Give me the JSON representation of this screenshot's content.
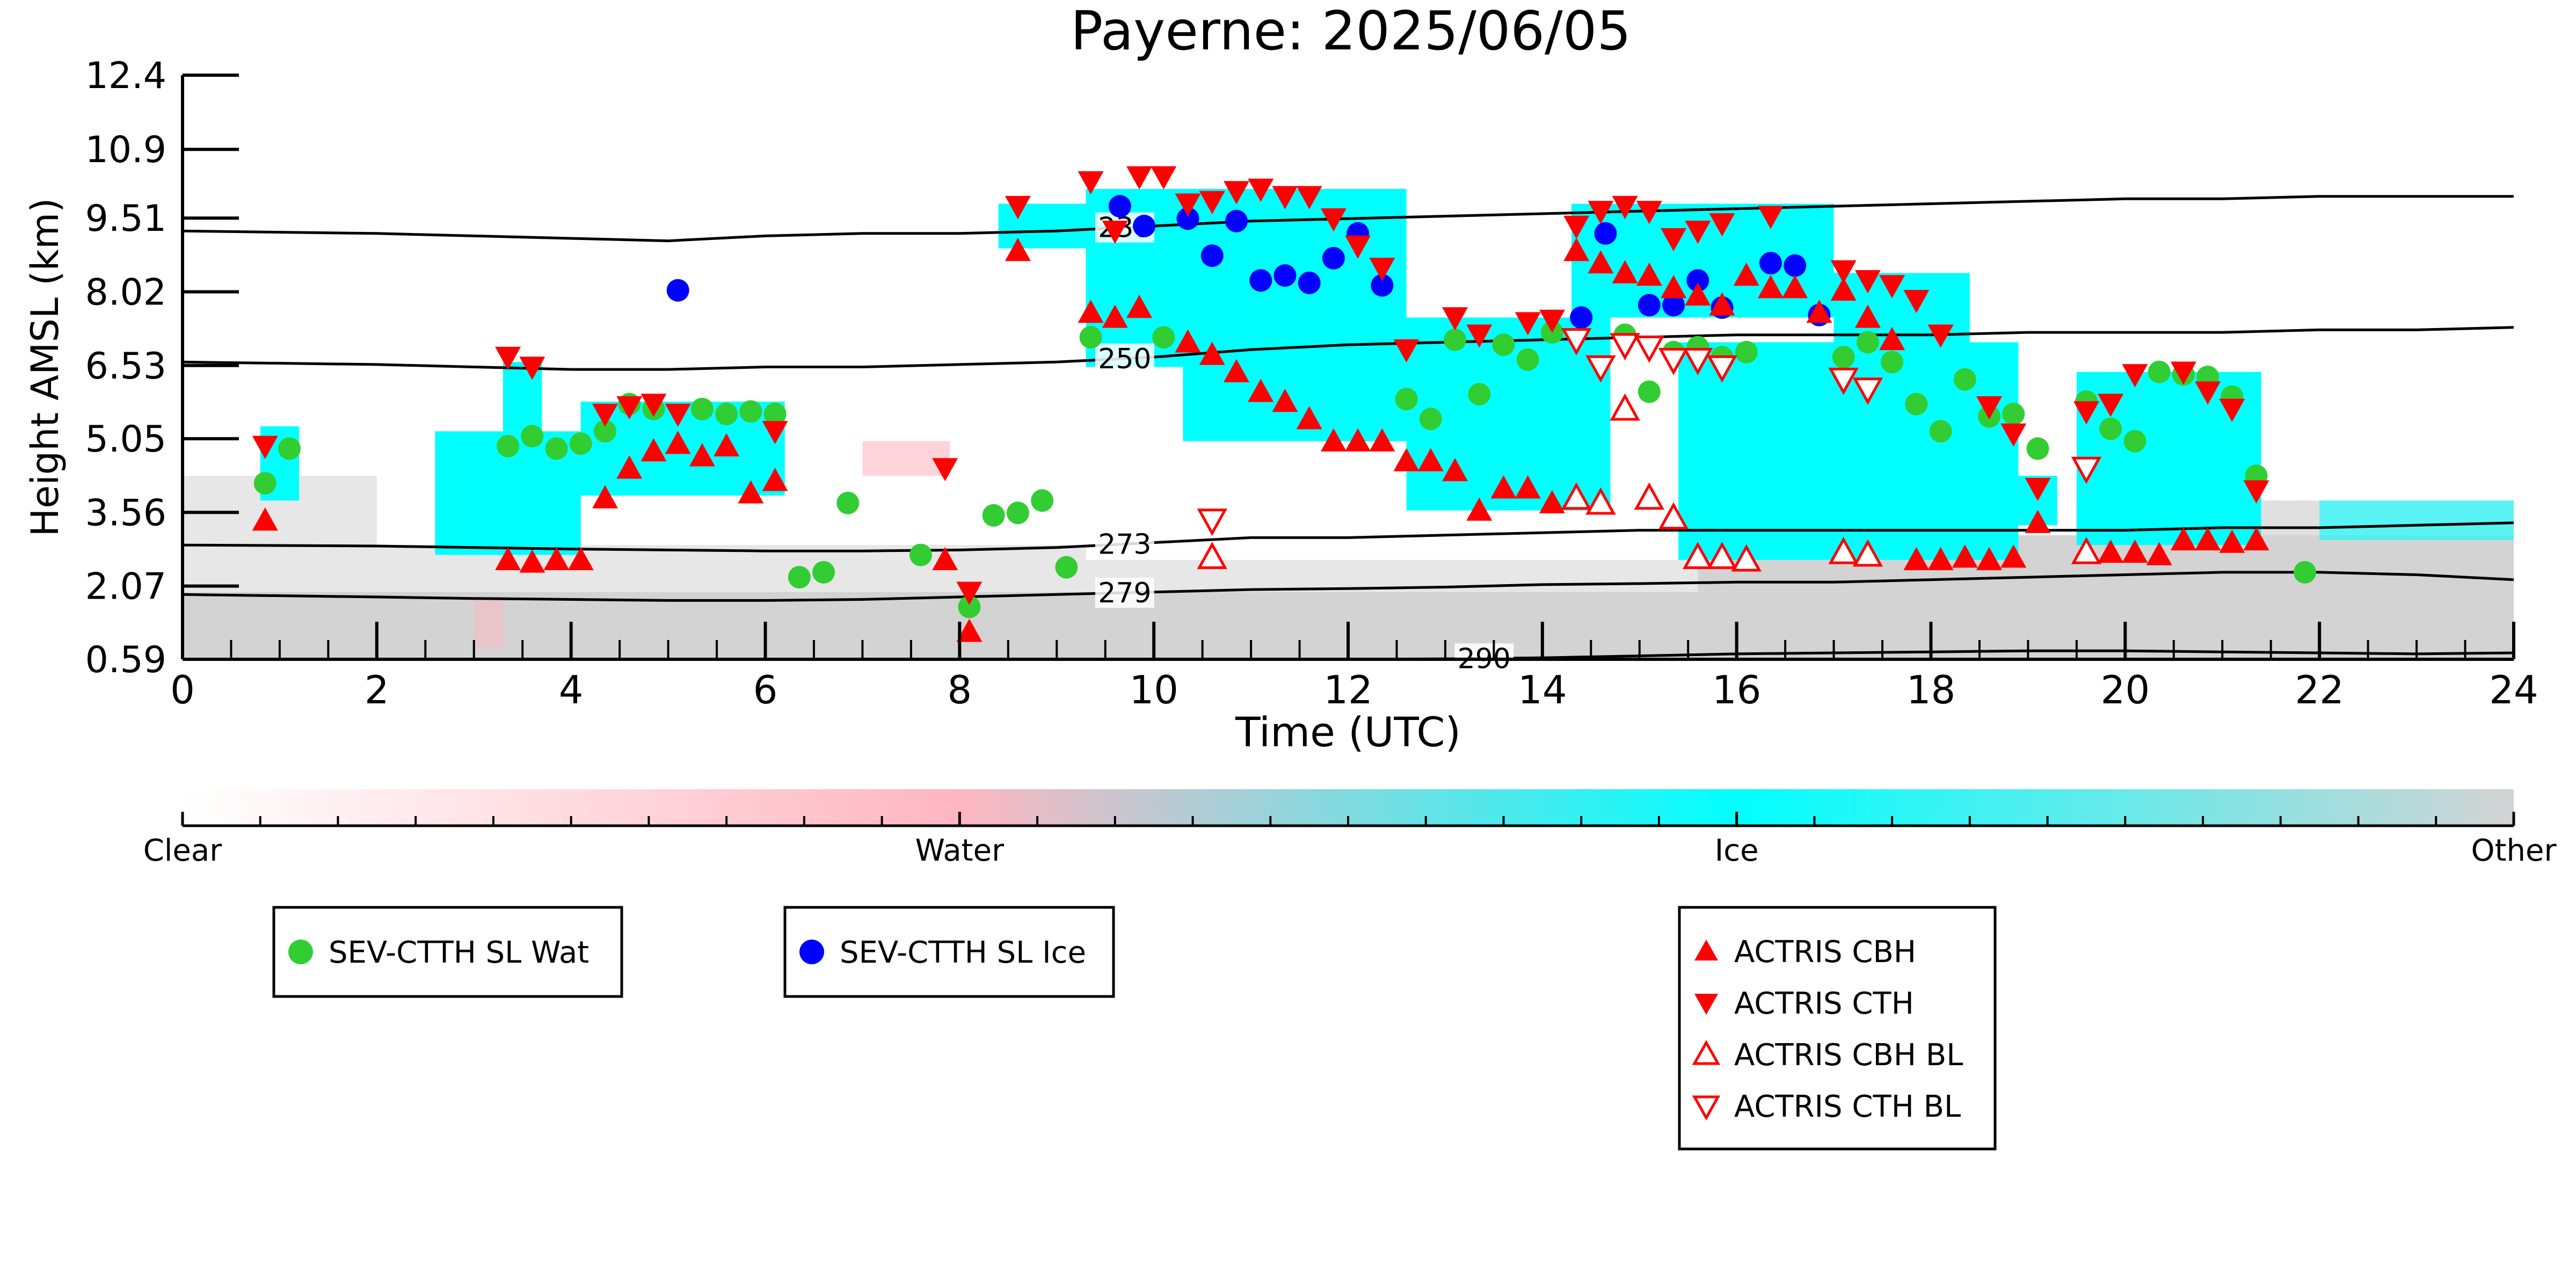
{
  "chart_data": {
    "type": "scatter",
    "title": "Payerne: 2025/06/05",
    "xlabel": "Time (UTC)",
    "ylabel": "Height AMSL (km)",
    "xlim": [
      0,
      24
    ],
    "ylim": [
      0.59,
      12.4
    ],
    "x_ticks": [
      "0",
      "2",
      "4",
      "6",
      "8",
      "10",
      "12",
      "14",
      "16",
      "18",
      "20",
      "22",
      "24"
    ],
    "y_ticks": [
      "0.59",
      "2.07",
      "3.56",
      "5.05",
      "6.53",
      "8.02",
      "9.51",
      "10.9",
      "12.4"
    ],
    "grid": false,
    "colorbar": {
      "labels": [
        "Clear",
        "Water",
        "Ice",
        "Other"
      ],
      "colors": [
        "#ffffff",
        "#ffb6c1",
        "#00ffff",
        "#d3d3d3"
      ]
    },
    "isotherms": [
      {
        "label": "230",
        "x": [
          0,
          2,
          3,
          4,
          5,
          6,
          7,
          8,
          9,
          10,
          11,
          12,
          13,
          14,
          15,
          16,
          17,
          18,
          19,
          20,
          21,
          22,
          23,
          24
        ],
        "y": [
          9.25,
          9.2,
          9.15,
          9.1,
          9.05,
          9.15,
          9.2,
          9.2,
          9.25,
          9.35,
          9.45,
          9.5,
          9.55,
          9.6,
          9.65,
          9.7,
          9.75,
          9.8,
          9.85,
          9.9,
          9.9,
          9.95,
          9.95,
          9.95
        ]
      },
      {
        "label": "250",
        "x": [
          0,
          2,
          3,
          4,
          5,
          6,
          7,
          8,
          9,
          10,
          11,
          12,
          13,
          14,
          15,
          16,
          17,
          18,
          19,
          20,
          21,
          22,
          23,
          24
        ],
        "y": [
          6.6,
          6.55,
          6.5,
          6.45,
          6.45,
          6.5,
          6.5,
          6.55,
          6.6,
          6.7,
          6.85,
          6.95,
          7.0,
          7.05,
          7.1,
          7.15,
          7.15,
          7.15,
          7.2,
          7.2,
          7.2,
          7.25,
          7.25,
          7.3
        ]
      },
      {
        "label": "273",
        "x": [
          0,
          2,
          3,
          4,
          5,
          6,
          7,
          8,
          9,
          10,
          11,
          12,
          13,
          14,
          15,
          16,
          17,
          18,
          19,
          20,
          21,
          22,
          23,
          24
        ],
        "y": [
          2.9,
          2.88,
          2.85,
          2.82,
          2.8,
          2.78,
          2.78,
          2.8,
          2.85,
          2.95,
          3.05,
          3.05,
          3.1,
          3.15,
          3.2,
          3.2,
          3.2,
          3.2,
          3.2,
          3.2,
          3.25,
          3.25,
          3.3,
          3.35
        ]
      },
      {
        "label": "279",
        "x": [
          0,
          2,
          3,
          4,
          5,
          6,
          7,
          8,
          9,
          10,
          11,
          12,
          13,
          14,
          15,
          16,
          17,
          18,
          19,
          20,
          21,
          22,
          23,
          24
        ],
        "y": [
          1.9,
          1.85,
          1.82,
          1.8,
          1.78,
          1.78,
          1.8,
          1.85,
          1.9,
          1.95,
          2.0,
          2.02,
          2.05,
          2.1,
          2.12,
          2.15,
          2.15,
          2.2,
          2.25,
          2.3,
          2.35,
          2.35,
          2.3,
          2.2
        ]
      },
      {
        "label": "290",
        "x": [
          12,
          13,
          14,
          15,
          16,
          17,
          18,
          19,
          20,
          21,
          22,
          23,
          24
        ],
        "y": [
          0.59,
          0.6,
          0.62,
          0.66,
          0.7,
          0.72,
          0.74,
          0.76,
          0.76,
          0.74,
          0.72,
          0.7,
          0.72
        ]
      }
    ],
    "series": [
      {
        "name": "SEV-CTTH SL Wat",
        "marker": "circle",
        "color": "#32cd32",
        "x": [
          0.85,
          1.1,
          3.35,
          3.6,
          3.85,
          4.1,
          4.35,
          4.6,
          4.85,
          5.35,
          5.6,
          5.85,
          6.1,
          6.35,
          6.6,
          6.85,
          7.6,
          8.1,
          8.35,
          8.6,
          8.85,
          9.1,
          9.35,
          10.1,
          12.6,
          12.85,
          13.1,
          13.35,
          13.6,
          13.85,
          14.1,
          14.85,
          15.1,
          15.35,
          15.6,
          15.85,
          16.1,
          17.1,
          17.35,
          17.6,
          17.85,
          18.1,
          18.35,
          18.6,
          18.85,
          19.1,
          19.6,
          19.85,
          20.1,
          20.35,
          20.6,
          20.85,
          21.1,
          21.35,
          21.85
        ],
        "y": [
          4.15,
          4.85,
          4.9,
          5.1,
          4.85,
          4.95,
          5.2,
          5.75,
          5.65,
          5.65,
          5.55,
          5.6,
          5.55,
          2.25,
          2.35,
          3.75,
          2.7,
          1.65,
          3.5,
          3.55,
          3.8,
          2.45,
          7.1,
          7.1,
          5.85,
          5.45,
          7.05,
          5.95,
          6.95,
          6.65,
          7.2,
          7.15,
          6.0,
          6.8,
          6.9,
          6.7,
          6.8,
          6.7,
          7.0,
          6.6,
          5.75,
          5.2,
          6.25,
          5.5,
          5.55,
          4.85,
          5.8,
          5.25,
          5.0,
          6.4,
          6.35,
          6.3,
          5.9,
          4.3,
          2.35
        ]
      },
      {
        "name": "SEV-CTTH SL Ice",
        "marker": "circle",
        "color": "#0000ff",
        "x": [
          5.1,
          9.65,
          9.9,
          10.35,
          10.6,
          10.85,
          11.1,
          11.35,
          11.6,
          11.85,
          12.1,
          12.35,
          14.4,
          14.65,
          15.1,
          15.35,
          15.6,
          15.85,
          16.35,
          16.6,
          16.85
        ],
        "y": [
          8.05,
          9.75,
          9.35,
          9.5,
          8.75,
          9.45,
          8.25,
          8.35,
          8.2,
          8.7,
          9.2,
          8.15,
          7.5,
          9.2,
          7.75,
          7.75,
          8.25,
          7.7,
          8.6,
          8.55,
          7.55
        ]
      }
    ],
    "triangle_series": [
      {
        "name": "ACTRIS CBH",
        "marker": "triangle-up",
        "filled": true,
        "color": "#ff0000",
        "x": [
          0.85,
          3.35,
          3.6,
          3.85,
          4.1,
          4.35,
          4.6,
          4.85,
          5.1,
          5.35,
          5.6,
          5.85,
          6.1,
          7.85,
          8.1,
          8.6,
          9.35,
          9.6,
          9.85,
          10.35,
          10.6,
          10.85,
          11.1,
          11.35,
          11.6,
          11.85,
          12.1,
          12.35,
          12.6,
          12.85,
          13.1,
          13.35,
          13.6,
          13.85,
          14.1,
          14.35,
          14.6,
          14.85,
          15.1,
          15.35,
          15.6,
          15.85,
          16.1,
          16.35,
          16.6,
          16.85,
          17.1,
          17.35,
          17.6,
          17.85,
          18.1,
          18.35,
          18.6,
          18.85,
          19.1,
          19.85,
          20.1,
          20.35,
          20.6,
          20.85,
          21.1,
          21.35
        ],
        "y": [
          3.4,
          2.6,
          2.55,
          2.6,
          2.6,
          3.85,
          4.45,
          4.8,
          4.95,
          4.7,
          4.9,
          3.95,
          4.2,
          2.6,
          1.15,
          8.85,
          7.6,
          7.5,
          7.7,
          7.0,
          6.75,
          6.4,
          6.0,
          5.8,
          5.45,
          5.0,
          5.0,
          5.0,
          4.6,
          4.6,
          4.4,
          3.6,
          4.05,
          4.05,
          3.75,
          8.85,
          8.6,
          8.4,
          8.35,
          8.1,
          7.95,
          7.75,
          8.35,
          8.1,
          8.1,
          7.6,
          8.05,
          7.5,
          7.05,
          2.6,
          2.6,
          2.65,
          2.6,
          2.65,
          3.35,
          2.75,
          2.75,
          2.7,
          3.0,
          3.0,
          2.95,
          3.0
        ]
      },
      {
        "name": "ACTRIS CTH",
        "marker": "triangle-down",
        "filled": true,
        "color": "#ff0000",
        "x": [
          0.85,
          3.35,
          3.6,
          4.35,
          4.6,
          4.85,
          5.1,
          6.1,
          7.85,
          8.1,
          8.6,
          9.35,
          9.6,
          9.85,
          10.1,
          10.35,
          10.6,
          10.85,
          11.1,
          11.35,
          11.6,
          11.85,
          12.1,
          12.35,
          12.6,
          13.1,
          13.35,
          13.85,
          14.1,
          14.35,
          14.6,
          14.85,
          15.1,
          15.35,
          15.6,
          15.85,
          16.35,
          17.1,
          17.35,
          17.6,
          17.85,
          18.1,
          18.6,
          18.85,
          19.1,
          19.6,
          19.85,
          20.1,
          20.6,
          20.85,
          21.1,
          21.35
        ],
        "y": [
          4.9,
          6.7,
          6.5,
          5.55,
          5.7,
          5.75,
          5.55,
          5.2,
          4.45,
          1.95,
          9.75,
          10.25,
          9.25,
          10.35,
          10.35,
          9.8,
          9.85,
          10.05,
          10.1,
          9.95,
          9.95,
          9.5,
          8.95,
          8.5,
          6.85,
          7.5,
          7.15,
          7.4,
          7.45,
          9.35,
          9.65,
          9.75,
          9.65,
          9.1,
          9.25,
          9.4,
          9.55,
          8.45,
          8.25,
          8.15,
          7.85,
          7.15,
          5.7,
          5.15,
          4.05,
          5.6,
          5.75,
          6.35,
          6.4,
          6.0,
          5.65,
          4.0
        ]
      },
      {
        "name": "ACTRIS CBH BL",
        "marker": "triangle-up",
        "filled": false,
        "color": "#ff0000",
        "x": [
          10.6,
          14.35,
          14.6,
          14.85,
          15.1,
          15.35,
          15.6,
          15.85,
          16.1,
          17.1,
          17.35,
          19.6
        ],
        "y": [
          2.65,
          3.85,
          3.75,
          5.65,
          3.85,
          3.45,
          2.65,
          2.65,
          2.6,
          2.75,
          2.7,
          2.75
        ]
      },
      {
        "name": "ACTRIS CTH BL",
        "marker": "triangle-down",
        "filled": false,
        "color": "#ff0000",
        "x": [
          10.6,
          14.35,
          14.6,
          14.85,
          15.1,
          15.35,
          15.6,
          15.85,
          17.1,
          17.35,
          19.6
        ],
        "y": [
          3.4,
          7.05,
          6.5,
          6.95,
          6.9,
          6.65,
          6.65,
          6.5,
          6.25,
          6.05,
          4.45
        ]
      }
    ],
    "legends": [
      [
        "SEV-CTTH SL Wat"
      ],
      [
        "SEV-CTTH SL Ice"
      ],
      [
        "ACTRIS CBH",
        "ACTRIS CTH",
        "ACTRIS CBH BL",
        "ACTRIS CTH BL"
      ]
    ]
  }
}
